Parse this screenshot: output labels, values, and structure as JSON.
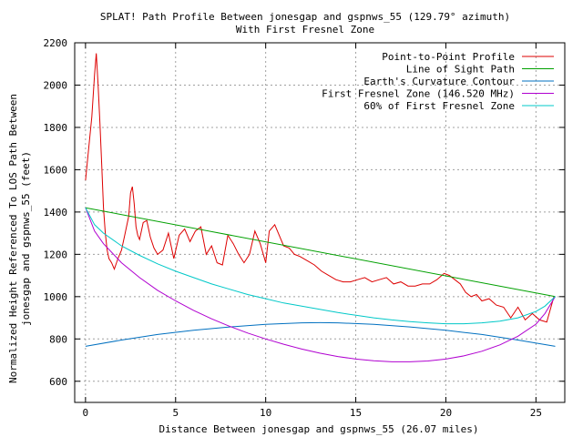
{
  "chart_data": {
    "type": "line",
    "title": "SPLAT! Path Profile Between jonesgap and gspnws_55 (129.79° azimuth)",
    "subtitle": "With First Fresnel Zone",
    "xlabel": "Distance Between jonesgap and gspnws_55 (26.07 miles)",
    "ylabel_line1": "Normalized Height Referenced To LOS Path Between",
    "ylabel_line2": "jonesgap and gspnws_55 (feet)",
    "xlim": [
      -0.6,
      26.6
    ],
    "ylim": [
      500,
      2200
    ],
    "x_ticks": [
      0,
      5,
      10,
      15,
      20,
      25
    ],
    "y_ticks": [
      600,
      800,
      1000,
      1200,
      1400,
      1600,
      1800,
      2000,
      2200
    ],
    "grid": true,
    "legend_position": "top-right",
    "series": [
      {
        "name": "Point-to-Point Profile",
        "color": "#dd0000",
        "x": [
          0,
          0.2,
          0.35,
          0.5,
          0.6,
          0.7,
          0.8,
          0.9,
          1.0,
          1.1,
          1.2,
          1.3,
          1.45,
          1.6,
          1.8,
          2.0,
          2.2,
          2.4,
          2.5,
          2.6,
          2.7,
          2.8,
          2.9,
          3.0,
          3.2,
          3.4,
          3.6,
          3.8,
          4.0,
          4.3,
          4.6,
          4.9,
          5.2,
          5.5,
          5.8,
          6.1,
          6.4,
          6.7,
          7.0,
          7.3,
          7.6,
          7.9,
          8.2,
          8.5,
          8.8,
          9.1,
          9.4,
          9.7,
          10.0,
          10.2,
          10.5,
          10.8,
          11.0,
          11.3,
          11.6,
          11.9,
          12.3,
          12.7,
          13.1,
          13.5,
          13.9,
          14.3,
          14.7,
          15.1,
          15.5,
          15.9,
          16.3,
          16.7,
          17.1,
          17.5,
          17.9,
          18.3,
          18.7,
          19.1,
          19.5,
          19.9,
          20.2,
          20.5,
          20.8,
          21.1,
          21.4,
          21.7,
          22.0,
          22.4,
          22.8,
          23.2,
          23.6,
          24.0,
          24.4,
          24.8,
          25.2,
          25.6,
          26.0
        ],
        "values": [
          1550,
          1720,
          1850,
          2050,
          2150,
          2000,
          1820,
          1620,
          1420,
          1300,
          1220,
          1180,
          1160,
          1130,
          1180,
          1220,
          1300,
          1380,
          1490,
          1520,
          1440,
          1330,
          1290,
          1270,
          1350,
          1360,
          1280,
          1230,
          1200,
          1220,
          1300,
          1180,
          1290,
          1320,
          1260,
          1310,
          1330,
          1200,
          1240,
          1160,
          1150,
          1290,
          1250,
          1200,
          1160,
          1200,
          1310,
          1250,
          1160,
          1310,
          1340,
          1280,
          1240,
          1230,
          1200,
          1190,
          1170,
          1150,
          1120,
          1100,
          1080,
          1070,
          1070,
          1080,
          1090,
          1070,
          1080,
          1090,
          1060,
          1070,
          1050,
          1050,
          1060,
          1060,
          1080,
          1110,
          1100,
          1080,
          1060,
          1020,
          1000,
          1010,
          980,
          990,
          960,
          950,
          900,
          950,
          890,
          920,
          890,
          880,
          1000
        ]
      },
      {
        "name": "Line of Sight Path",
        "color": "#00a000",
        "x": [
          0,
          26.07
        ],
        "values": [
          1420,
          1000
        ]
      },
      {
        "name": "Earth's Curvature Contour",
        "color": "#0070c0",
        "x": [
          0,
          2,
          4,
          6,
          8,
          10,
          12,
          13.035,
          14,
          16,
          18,
          20,
          22,
          24,
          26.07
        ],
        "values": [
          765,
          795,
          821,
          841,
          857,
          869,
          876,
          877,
          876,
          869,
          857,
          841,
          821,
          795,
          765
        ]
      },
      {
        "name": "First Fresnel Zone (146.520 MHz)",
        "color": "#b000d0",
        "x": [
          0,
          0.5,
          1,
          2,
          3,
          4,
          5,
          6,
          7,
          8,
          9,
          10,
          11,
          12,
          13,
          14,
          15,
          16,
          17,
          18,
          19,
          20,
          21,
          22,
          23,
          24,
          25,
          25.5,
          26.07
        ],
        "values": [
          1420,
          1310,
          1250,
          1160,
          1090,
          1030,
          980,
          935,
          895,
          860,
          828,
          800,
          775,
          752,
          733,
          717,
          705,
          697,
          692,
          692,
          696,
          705,
          720,
          742,
          772,
          813,
          870,
          920,
          1000
        ]
      },
      {
        "name": "60% of First Fresnel Zone",
        "color": "#00c8c8",
        "x": [
          0,
          0.5,
          1,
          2,
          3,
          4,
          5,
          6,
          7,
          8,
          9,
          10,
          11,
          12,
          13,
          14,
          15,
          16,
          17,
          18,
          19,
          20,
          21,
          22,
          23,
          24,
          25,
          25.5,
          26.07
        ],
        "values": [
          1420,
          1340,
          1300,
          1240,
          1195,
          1155,
          1120,
          1090,
          1060,
          1035,
          1010,
          990,
          970,
          955,
          940,
          925,
          912,
          900,
          890,
          882,
          876,
          872,
          872,
          876,
          884,
          900,
          930,
          955,
          1000
        ]
      }
    ]
  }
}
